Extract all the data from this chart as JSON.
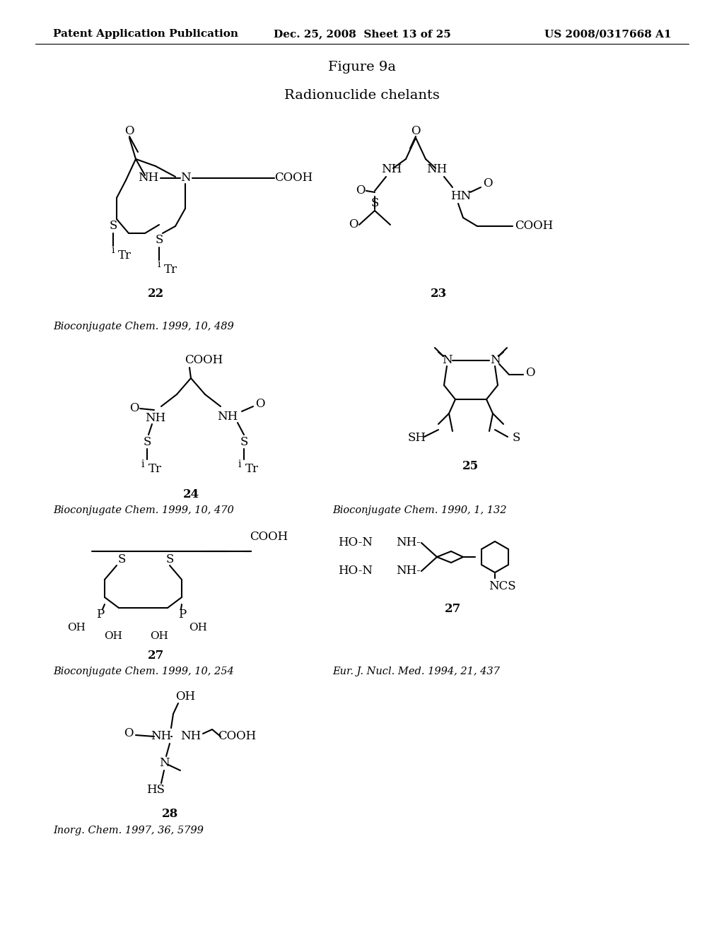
{
  "background": "#ffffff",
  "header_left": "Patent Application Publication",
  "header_center": "Dec. 25, 2008  Sheet 13 of 25",
  "header_right": "US 2008/0317668 A1",
  "fig_title": "Figure 9a",
  "subtitle": "Radionuclide chelants"
}
